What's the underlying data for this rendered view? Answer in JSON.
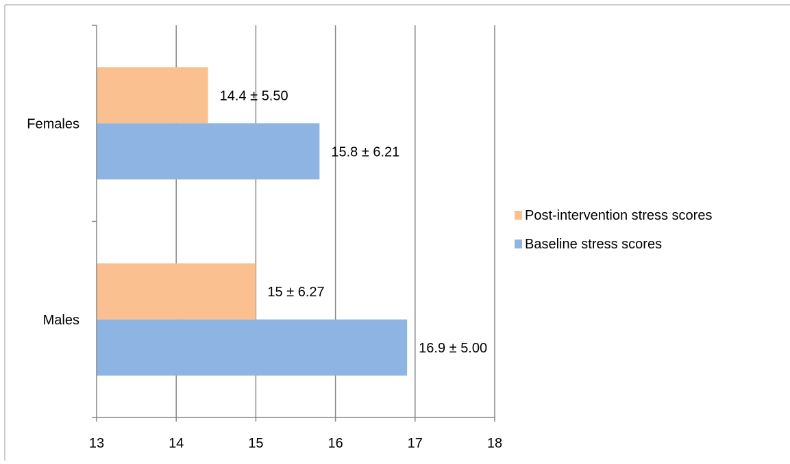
{
  "chart_data": {
    "type": "bar",
    "orientation": "horizontal",
    "categories": [
      "Females",
      "Males"
    ],
    "series": [
      {
        "name": "Post-intervention stress scores",
        "color": "#FAC090",
        "values": [
          14.4,
          15
        ],
        "labels": [
          "14.4 ± 5.50",
          "15 ± 6.27"
        ]
      },
      {
        "name": "Baseline stress scores",
        "color": "#8EB4E3",
        "values": [
          15.8,
          16.9
        ],
        "labels": [
          "15.8 ± 6.21",
          "16.9 ± 5.00"
        ]
      }
    ],
    "xlim": [
      13,
      18
    ],
    "xticks": [
      13,
      14,
      15,
      16,
      17,
      18
    ],
    "xtick_labels": [
      "13",
      "14",
      "15",
      "16",
      "17",
      "18"
    ],
    "grid": true,
    "legend_position": "right"
  }
}
